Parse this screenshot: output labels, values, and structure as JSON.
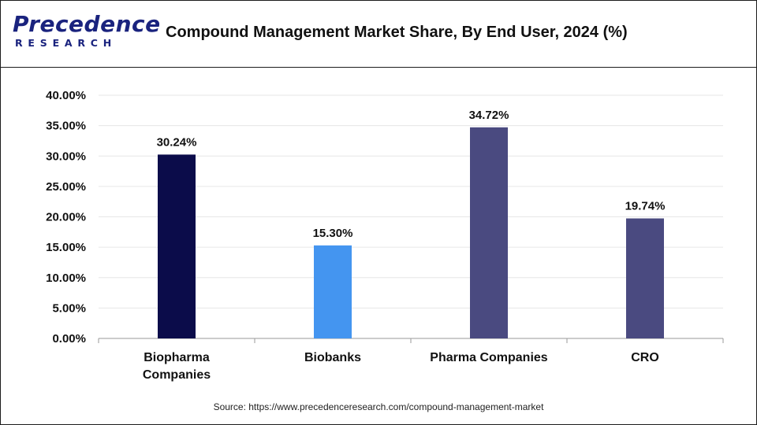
{
  "header": {
    "logo_top": "Precedence",
    "logo_bottom": "RESEARCH",
    "title": "Compound Management Market Share, By End User, 2024 (%)"
  },
  "source": "Source: https://www.precedenceresearch.com/compound-management-market",
  "chart_data": {
    "type": "bar",
    "title": "Compound Management Market Share, By End User, 2024 (%)",
    "categories": [
      [
        "Biopharma",
        "Companies"
      ],
      [
        "Biobanks"
      ],
      [
        "Pharma Companies"
      ],
      [
        "CRO"
      ]
    ],
    "values": [
      30.24,
      15.3,
      34.72,
      19.74
    ],
    "value_labels": [
      "30.24%",
      "15.30%",
      "34.72%",
      "19.74%"
    ],
    "bar_colors": [
      "#0b0c4a",
      "#4495f0",
      "#4a4a80",
      "#4a4a80"
    ],
    "ylim": [
      0,
      40
    ],
    "yticks": [
      0,
      5,
      10,
      15,
      20,
      25,
      30,
      35,
      40
    ],
    "ytick_labels": [
      "0.00%",
      "5.00%",
      "10.00%",
      "15.00%",
      "20.00%",
      "25.00%",
      "30.00%",
      "35.00%",
      "40.00%"
    ],
    "grid": true,
    "xlabel": "",
    "ylabel": ""
  }
}
